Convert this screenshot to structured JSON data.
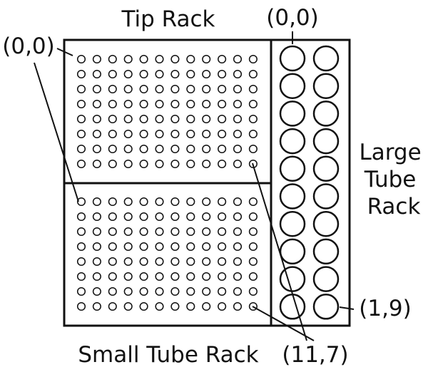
{
  "labels": {
    "tip_rack": "Tip Rack",
    "small_tube_rack": "Small Tube Rack",
    "large_tube_rack": [
      "Large",
      "Tube",
      "Rack"
    ]
  },
  "coordinates": {
    "tip_origin": "(0,0)",
    "large_origin": "(0,0)",
    "large_end": "(1,9)",
    "small_end": "(11,7)"
  },
  "grids": {
    "tip_rack": {
      "cols": 12,
      "rows": 8
    },
    "small_tube_rack": {
      "cols": 12,
      "rows": 8
    },
    "large_tube_rack": {
      "cols": 2,
      "rows": 10
    }
  },
  "colors": {
    "stroke": "#111111",
    "background": "#ffffff"
  }
}
